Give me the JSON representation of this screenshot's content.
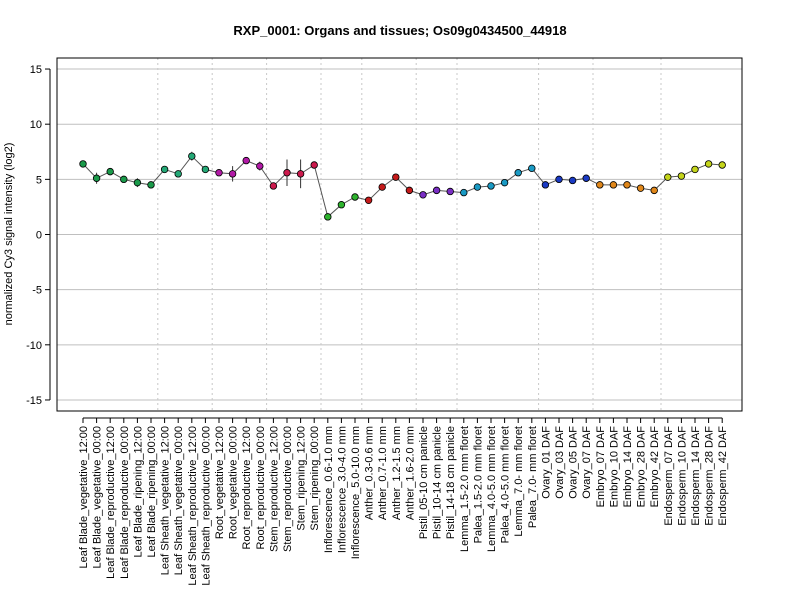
{
  "chart_data": {
    "type": "line",
    "title": "RXP_0001: Organs and tissues; Os09g0434500_44918",
    "xlabel": "",
    "ylabel": "normalized Cy3 signal intensity (log2)",
    "ylim": [
      -16,
      16
    ],
    "yticks": [
      -15,
      -10,
      -5,
      0,
      5,
      10,
      15
    ],
    "grid": "horizontal",
    "categories": [
      "Leaf Blade_vegetative_12:00",
      "Leaf Blade_vegetative_00:00",
      "Leaf Blade_reproductive_12:00",
      "Leaf Blade_reproductive_00:00",
      "Leaf Blade_ripening_12:00",
      "Leaf Blade_ripening_00:00",
      "Leaf Sheath_vegetative_12:00",
      "Leaf Sheath_vegetative_00:00",
      "Leaf Sheath_reproductive_12:00",
      "Leaf Sheath_reproductive_00:00",
      "Root_vegetative_12:00",
      "Root_vegetative_00:00",
      "Root_reproductive_12:00",
      "Root_reproductive_00:00",
      "Stem_reproductive_12:00",
      "Stem_reproductive_00:00",
      "Stem_ripening_12:00",
      "Stem_ripening_00:00",
      "Inflorescence_0.6-1.0 mm",
      "Inflorescence_3.0-4.0 mm",
      "Inflorescence_5.0-10.0 mm",
      "Anther_0.3-0.6 mm",
      "Anther_0.7-1.0 mm",
      "Anther_1.2-1.5 mm",
      "Anther_1.6-2.0 mm",
      "Pistil_05-10 cm panicle",
      "Pistil_10-14 cm panicle",
      "Pistil_14-18 cm panicle",
      "Lemma_1.5-2.0 mm floret",
      "Palea_1.5-2.0 mm floret",
      "Lemma_4.0-5.0 mm floret",
      "Palea_4.0-5.0 mm floret",
      "Lemma_7.0- mm floret",
      "Palea_7.0- mm floret",
      "Ovary_01 DAF",
      "Ovary_03 DAF",
      "Ovary_05 DAF",
      "Ovary_07 DAF",
      "Embryo_07 DAF",
      "Embryo_10 DAF",
      "Embryo_14 DAF",
      "Embryo_28 DAF",
      "Embryo_42 DAF",
      "Endosperm_07 DAF",
      "Endosperm_10 DAF",
      "Endosperm_14 DAF",
      "Endosperm_28 DAF",
      "Endosperm_42 DAF"
    ],
    "values": [
      6.4,
      5.1,
      5.7,
      5.0,
      4.7,
      4.5,
      5.9,
      5.5,
      7.1,
      5.9,
      5.6,
      5.5,
      6.7,
      6.2,
      4.4,
      5.6,
      5.5,
      6.3,
      1.6,
      2.7,
      3.4,
      3.1,
      4.3,
      5.2,
      4.0,
      3.6,
      4.0,
      3.9,
      3.8,
      4.3,
      4.4,
      4.7,
      5.6,
      6.0,
      4.5,
      5.0,
      4.9,
      5.1,
      4.5,
      4.5,
      4.5,
      4.2,
      4.0,
      5.2,
      5.3,
      5.9,
      6.4,
      6.3
    ],
    "errors": [
      0.1,
      0.5,
      0.2,
      0.2,
      0.4,
      0.2,
      0.1,
      0.2,
      0.4,
      0.2,
      0.1,
      0.7,
      0.2,
      0.4,
      0.1,
      1.2,
      1.3,
      0.2,
      0.1,
      0.1,
      0.1,
      0.1,
      0.1,
      0.2,
      0.2,
      0.2,
      0.2,
      0.1,
      0.1,
      0.1,
      0.1,
      0.1,
      0.1,
      0.2,
      0.1,
      0.1,
      0.1,
      0.1,
      0.1,
      0.1,
      0.1,
      0.1,
      0.1,
      0.1,
      0.1,
      0.1,
      0.1,
      0.1
    ],
    "point_colors": [
      "#1a9a4a",
      "#1a9a4a",
      "#1a9a4a",
      "#1a9a4a",
      "#1a9a4a",
      "#1a9a4a",
      "#24a876",
      "#24a876",
      "#24a876",
      "#24a876",
      "#b21aa6",
      "#b21aa6",
      "#b21aa6",
      "#b21aa6",
      "#cc1a4d",
      "#cc1a4d",
      "#cc1a4d",
      "#cc1a4d",
      "#2eb32e",
      "#2eb32e",
      "#2eb32e",
      "#c41a1a",
      "#c41a1a",
      "#c41a1a",
      "#c41a1a",
      "#7a2ec4",
      "#7a2ec4",
      "#7a2ec4",
      "#1a9ac4",
      "#1a9ac4",
      "#1a9ac4",
      "#1a9ac4",
      "#1a9ac4",
      "#1a9ac4",
      "#1a3ac4",
      "#1a3ac4",
      "#1a3ac4",
      "#1a3ac4",
      "#e0871a",
      "#e0871a",
      "#e0871a",
      "#e0871a",
      "#e0871a",
      "#c4d41a",
      "#c4d41a",
      "#c4d41a",
      "#c4d41a",
      "#c4d41a"
    ],
    "group_separators_after_index": [
      5,
      9,
      13,
      17,
      20,
      24,
      27,
      33,
      37,
      42
    ],
    "line_color": "#555555",
    "grid_color": "#bfbfbf",
    "separator_color": "#c8c8c8"
  }
}
